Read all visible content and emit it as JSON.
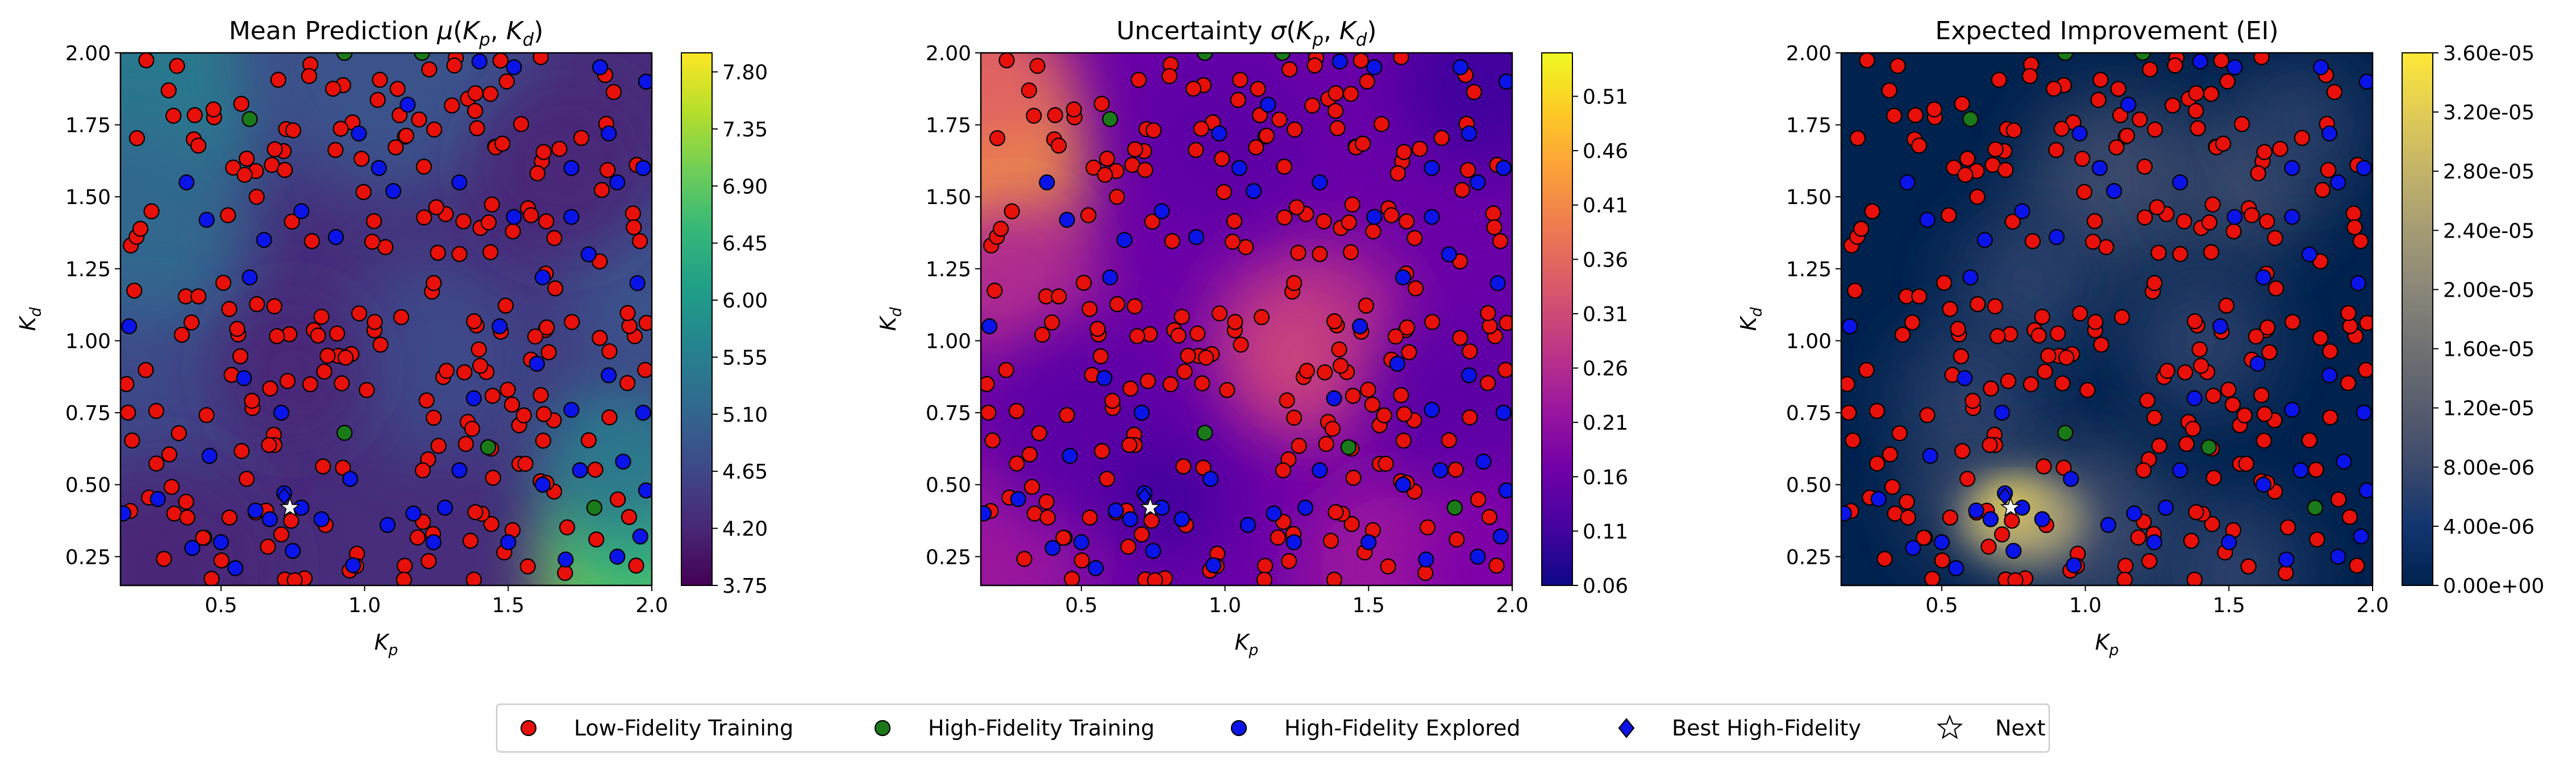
{
  "figure": {
    "legend": {
      "placement": "bottom-center",
      "entries": [
        {
          "label": "Low-Fidelity Training",
          "marker": "circle",
          "color": "#e8100a"
        },
        {
          "label": "High-Fidelity Training",
          "marker": "circle",
          "color": "#1a7a1a"
        },
        {
          "label": "High-Fidelity Explored",
          "marker": "circle",
          "color": "#0a14e8"
        },
        {
          "label": "Best High-Fidelity",
          "marker": "diamond",
          "color": "#0a14e8"
        },
        {
          "label": "Next",
          "marker": "star",
          "color": "#ffffff"
        }
      ]
    }
  },
  "chart_data": [
    {
      "type": "heatmap",
      "title": "Mean Prediction μ(Kp, Kd)",
      "xlabel": "Kp",
      "ylabel": "Kd",
      "xlim": [
        0.15,
        2.0
      ],
      "ylim": [
        0.15,
        2.0
      ],
      "xticks": [
        "0.5",
        "1.0",
        "1.5",
        "2.0"
      ],
      "yticks": [
        "0.25",
        "0.50",
        "0.75",
        "1.00",
        "1.25",
        "1.50",
        "1.75",
        "2.00"
      ],
      "colormap": "viridis",
      "colorbar": {
        "min": 3.75,
        "max": 7.95,
        "ticks": [
          "3.75",
          "4.20",
          "4.65",
          "5.10",
          "5.55",
          "6.00",
          "6.45",
          "6.90",
          "7.35",
          "7.80"
        ]
      },
      "surface": "high (teal) along left edge and lower-right corner, low (dark purple) across the interior, maximum ~7.9 at bottom-right (2.0, 0.15)"
    },
    {
      "type": "heatmap",
      "title": "Uncertainty σ(Kp, Kd)",
      "xlabel": "Kp",
      "ylabel": "Kd",
      "xlim": [
        0.15,
        2.0
      ],
      "ylim": [
        0.15,
        2.0
      ],
      "xticks": [
        "0.5",
        "1.0",
        "1.5",
        "2.0"
      ],
      "yticks": [
        "0.25",
        "0.50",
        "0.75",
        "1.00",
        "1.25",
        "1.50",
        "1.75",
        "2.00"
      ],
      "colormap": "plasma",
      "colorbar": {
        "min": 0.06,
        "max": 0.55,
        "ticks": [
          "0.06",
          "0.11",
          "0.16",
          "0.21",
          "0.26",
          "0.31",
          "0.36",
          "0.41",
          "0.46",
          "0.51"
        ]
      },
      "surface": "peak ~0.55 near (0.15, 1.55), secondary high near (1.3, 1.0) and bottom-left; low near observed samples"
    },
    {
      "type": "heatmap",
      "title": "Expected Improvement (EI)",
      "xlabel": "Kp",
      "ylabel": "Kd",
      "xlim": [
        0.15,
        2.0
      ],
      "ylim": [
        0.15,
        2.0
      ],
      "xticks": [
        "0.5",
        "1.0",
        "1.5",
        "2.0"
      ],
      "yticks": [
        "0.25",
        "0.50",
        "0.75",
        "1.00",
        "1.25",
        "1.50",
        "1.75",
        "2.00"
      ],
      "colormap": "cividis",
      "colorbar": {
        "min": 0.0,
        "max": 3.6e-05,
        "ticks": [
          "0.00e+00",
          "4.00e-06",
          "8.00e-06",
          "1.20e-05",
          "1.60e-05",
          "2.00e-05",
          "2.40e-05",
          "2.80e-05",
          "3.20e-05",
          "3.60e-05"
        ]
      },
      "surface": "maximum ~3.6e-05 near the Next point (0.74, 0.42); faint ring of moderate values around the interior"
    }
  ],
  "points": {
    "next": [
      0.74,
      0.42
    ],
    "best_high_fidelity": [
      0.72,
      0.46
    ],
    "high_fidelity_training": [
      [
        0.93,
        2.0
      ],
      [
        0.6,
        1.77
      ],
      [
        0.93,
        0.68
      ],
      [
        1.43,
        0.63
      ],
      [
        1.8,
        0.42
      ],
      [
        1.2,
        2.0
      ]
    ],
    "high_fidelity_explored": [
      [
        0.72,
        0.47
      ],
      [
        0.78,
        0.42
      ],
      [
        0.67,
        0.38
      ],
      [
        0.62,
        0.41
      ],
      [
        0.85,
        0.38
      ],
      [
        1.08,
        0.36
      ],
      [
        1.17,
        0.4
      ],
      [
        1.28,
        0.42
      ],
      [
        1.33,
        0.55
      ],
      [
        1.62,
        0.5
      ],
      [
        1.75,
        0.55
      ],
      [
        1.9,
        0.58
      ],
      [
        1.97,
        0.75
      ],
      [
        1.98,
        0.48
      ],
      [
        1.96,
        0.32
      ],
      [
        1.88,
        0.25
      ],
      [
        1.7,
        0.24
      ],
      [
        1.5,
        0.3
      ],
      [
        1.24,
        0.3
      ],
      [
        0.96,
        0.22
      ],
      [
        0.5,
        0.3
      ],
      [
        0.4,
        0.28
      ],
      [
        0.55,
        0.21
      ],
      [
        0.16,
        0.4
      ],
      [
        0.18,
        1.05
      ],
      [
        0.45,
        1.42
      ],
      [
        0.65,
        1.35
      ],
      [
        0.78,
        1.45
      ],
      [
        0.9,
        1.36
      ],
      [
        0.98,
        1.72
      ],
      [
        1.1,
        1.52
      ],
      [
        1.15,
        1.82
      ],
      [
        1.33,
        1.55
      ],
      [
        1.52,
        1.43
      ],
      [
        1.72,
        1.43
      ],
      [
        1.72,
        1.6
      ],
      [
        1.85,
        1.72
      ],
      [
        1.97,
        1.6
      ],
      [
        1.98,
        1.9
      ],
      [
        1.82,
        1.95
      ],
      [
        1.52,
        1.95
      ],
      [
        1.47,
        1.05
      ],
      [
        1.6,
        0.92
      ],
      [
        1.72,
        0.76
      ],
      [
        1.85,
        0.88
      ],
      [
        1.95,
        1.2
      ],
      [
        0.58,
        0.87
      ],
      [
        0.71,
        0.75
      ],
      [
        0.95,
        0.52
      ],
      [
        1.38,
        0.8
      ],
      [
        1.62,
        1.22
      ],
      [
        1.78,
        1.3
      ],
      [
        0.6,
        1.22
      ],
      [
        0.28,
        0.45
      ],
      [
        0.46,
        0.6
      ],
      [
        0.75,
        0.27
      ],
      [
        1.05,
        1.6
      ],
      [
        1.88,
        1.55
      ],
      [
        1.4,
        1.97
      ],
      [
        0.38,
        1.55
      ]
    ]
  }
}
